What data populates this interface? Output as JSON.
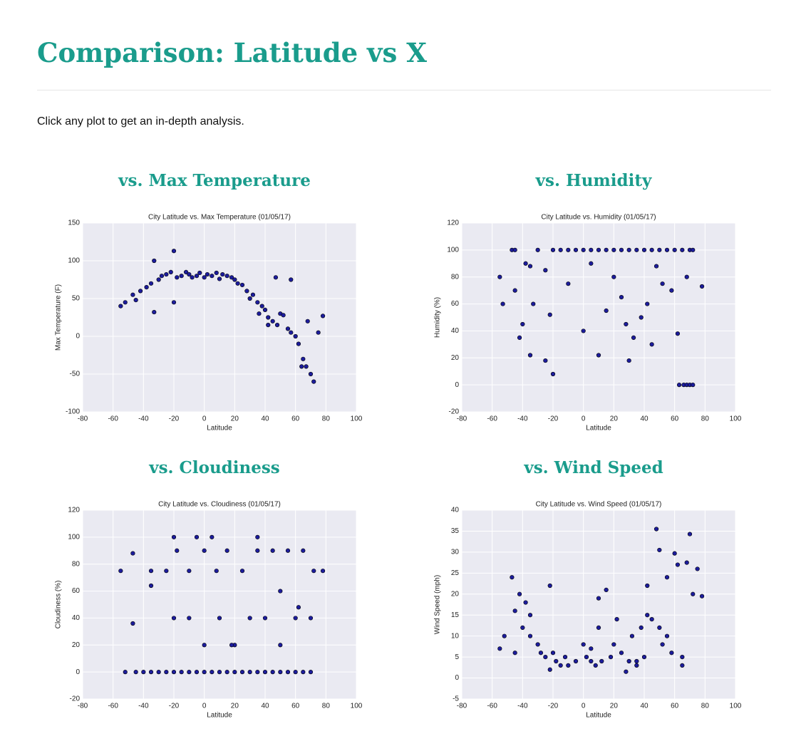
{
  "header": {
    "title": "Comparison: Latitude vs X",
    "intro": "Click any plot to get an in-depth analysis."
  },
  "sections": [
    "vs. Max Temperature",
    "vs. Humidity",
    "vs. Cloudiness",
    "vs. Wind Speed"
  ],
  "chart_data": [
    {
      "type": "scatter",
      "title": "City Latitude vs. Max Temperature (01/05/17)",
      "xlabel": "Latitude",
      "ylabel": "Max Temperature (F)",
      "x": [
        -55,
        -52,
        -47,
        -45,
        -42,
        -38,
        -35,
        -33,
        -30,
        -28,
        -25,
        -22,
        -20,
        -18,
        -15,
        -12,
        -10,
        -8,
        -5,
        -3,
        0,
        2,
        5,
        8,
        10,
        12,
        15,
        18,
        20,
        22,
        25,
        28,
        30,
        32,
        35,
        38,
        40,
        42,
        45,
        48,
        50,
        52,
        55,
        57,
        60,
        62,
        65,
        67,
        70,
        72,
        -20,
        -33,
        47,
        57,
        75,
        78,
        68,
        64,
        36,
        42
      ],
      "y": [
        40,
        45,
        55,
        48,
        60,
        65,
        70,
        100,
        75,
        80,
        82,
        85,
        113,
        78,
        80,
        85,
        82,
        78,
        80,
        84,
        78,
        82,
        80,
        84,
        76,
        82,
        80,
        78,
        75,
        70,
        68,
        60,
        50,
        55,
        45,
        40,
        35,
        25,
        20,
        15,
        30,
        28,
        10,
        5,
        0,
        -10,
        -30,
        -40,
        -50,
        -60,
        45,
        32,
        78,
        75,
        5,
        27,
        20,
        -40,
        30,
        15
      ],
      "xlim": [
        -80,
        100
      ],
      "xticks": [
        -80,
        -60,
        -40,
        -20,
        0,
        20,
        40,
        60,
        80,
        100
      ],
      "ylim": [
        -100,
        150
      ],
      "yticks": [
        -100,
        -50,
        0,
        50,
        100,
        150
      ],
      "color": "#1c1c9c",
      "grid": true
    },
    {
      "type": "scatter",
      "title": "City Latitude vs. Humidity (01/05/17)",
      "xlabel": "Latitude",
      "ylabel": "Humidity (%)",
      "x": [
        -55,
        -53,
        -47,
        -45,
        -42,
        -40,
        -38,
        -35,
        -33,
        -30,
        -25,
        -22,
        -20,
        -15,
        -10,
        -5,
        0,
        5,
        10,
        15,
        20,
        25,
        30,
        35,
        40,
        45,
        50,
        55,
        60,
        65,
        70,
        72,
        -25,
        -20,
        -10,
        0,
        5,
        10,
        15,
        20,
        25,
        30,
        33,
        38,
        42,
        48,
        52,
        58,
        62,
        68,
        63,
        66,
        68,
        70,
        72,
        -45,
        -35,
        28,
        45,
        78
      ],
      "y": [
        80,
        60,
        100,
        70,
        35,
        45,
        90,
        22,
        60,
        100,
        18,
        52,
        100,
        100,
        100,
        100,
        100,
        100,
        100,
        100,
        100,
        100,
        100,
        100,
        100,
        100,
        100,
        100,
        100,
        100,
        100,
        100,
        85,
        8,
        75,
        40,
        90,
        22,
        55,
        80,
        65,
        18,
        35,
        50,
        60,
        88,
        75,
        70,
        38,
        80,
        0,
        0,
        0,
        0,
        0,
        100,
        88,
        45,
        30,
        73
      ],
      "xlim": [
        -80,
        100
      ],
      "xticks": [
        -80,
        -60,
        -40,
        -20,
        0,
        20,
        40,
        60,
        80,
        100
      ],
      "ylim": [
        -20,
        120
      ],
      "yticks": [
        -20,
        0,
        20,
        40,
        60,
        80,
        100,
        120
      ],
      "color": "#1c1c9c",
      "grid": true
    },
    {
      "type": "scatter",
      "title": "City Latitude vs. Cloudiness (01/05/17)",
      "xlabel": "Latitude",
      "ylabel": "Cloudiness (%)",
      "x": [
        -55,
        -52,
        -47,
        -45,
        -40,
        -35,
        -30,
        -25,
        -20,
        -15,
        -10,
        -5,
        0,
        5,
        10,
        15,
        20,
        25,
        30,
        35,
        40,
        45,
        50,
        55,
        60,
        65,
        70,
        -35,
        -25,
        -18,
        -10,
        0,
        8,
        15,
        25,
        35,
        45,
        55,
        65,
        72,
        78,
        -20,
        -10,
        0,
        10,
        20,
        30,
        40,
        50,
        60,
        70,
        -47,
        -35,
        -20,
        -5,
        5,
        18,
        35,
        50,
        62
      ],
      "y": [
        75,
        0,
        88,
        0,
        0,
        0,
        0,
        0,
        0,
        0,
        0,
        0,
        0,
        0,
        0,
        0,
        0,
        0,
        0,
        0,
        0,
        0,
        0,
        0,
        0,
        0,
        0,
        75,
        75,
        90,
        75,
        90,
        75,
        90,
        75,
        90,
        90,
        90,
        90,
        75,
        75,
        40,
        40,
        20,
        40,
        20,
        40,
        40,
        20,
        40,
        40,
        36,
        64,
        100,
        100,
        100,
        20,
        100,
        60,
        48
      ],
      "xlim": [
        -80,
        100
      ],
      "xticks": [
        -80,
        -60,
        -40,
        -20,
        0,
        20,
        40,
        60,
        80,
        100
      ],
      "ylim": [
        -20,
        120
      ],
      "yticks": [
        -20,
        0,
        20,
        40,
        60,
        80,
        100,
        120
      ],
      "color": "#1c1c9c",
      "grid": true
    },
    {
      "type": "scatter",
      "title": "City Latitude vs. Wind Speed (01/05/17)",
      "xlabel": "Latitude",
      "ylabel": "Wind Speed (mph)",
      "x": [
        -55,
        -52,
        -47,
        -45,
        -42,
        -40,
        -38,
        -35,
        -30,
        -25,
        -22,
        -20,
        -18,
        -15,
        -12,
        -10,
        -5,
        0,
        2,
        5,
        8,
        10,
        12,
        15,
        18,
        20,
        25,
        30,
        32,
        35,
        38,
        40,
        42,
        45,
        48,
        50,
        52,
        55,
        58,
        60,
        62,
        65,
        68,
        70,
        72,
        75,
        78,
        -45,
        -35,
        -22,
        10,
        22,
        35,
        42,
        55,
        65,
        50,
        -28,
        28,
        5
      ],
      "y": [
        7,
        10,
        24,
        16,
        20,
        12,
        18,
        10,
        8,
        5,
        22,
        6,
        4,
        3,
        5,
        3,
        4,
        8,
        5,
        7,
        3,
        19,
        4,
        21,
        5,
        8,
        6,
        4,
        10,
        3,
        12,
        5,
        22,
        14,
        35.5,
        30.5,
        8,
        24,
        6,
        29.7,
        27,
        5,
        27.5,
        34.3,
        20,
        26,
        19.5,
        6,
        15,
        2,
        12,
        14,
        4,
        15,
        10,
        3,
        12,
        6,
        1.5,
        4
      ],
      "xlim": [
        -80,
        100
      ],
      "xticks": [
        -80,
        -60,
        -40,
        -20,
        0,
        20,
        40,
        60,
        80,
        100
      ],
      "ylim": [
        -5,
        40
      ],
      "yticks": [
        -5,
        0,
        5,
        10,
        15,
        20,
        25,
        30,
        35,
        40
      ],
      "color": "#1c1c9c",
      "grid": true
    }
  ]
}
